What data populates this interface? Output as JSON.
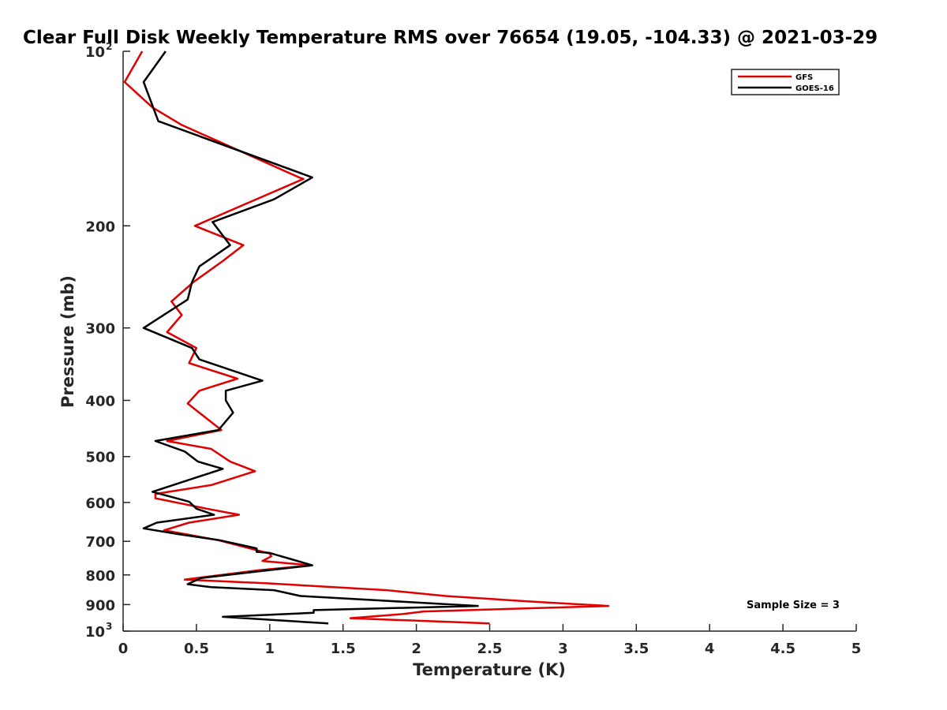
{
  "chart_data": {
    "type": "line",
    "title": "Clear Full Disk Weekly Temperature RMS over 76654 (19.05, -104.33) @ 2021-03-29",
    "xlabel": "Temperature (K)",
    "ylabel": "Pressure (mb)",
    "xlim": [
      0,
      5
    ],
    "ylim": [
      100,
      1000
    ],
    "y_scale": "log",
    "y_reversed": true,
    "grid": false,
    "legend_position": "top-right",
    "x_ticks": [
      "0",
      "0.5",
      "1",
      "1.5",
      "2",
      "2.5",
      "3",
      "3.5",
      "4",
      "4.5",
      "5"
    ],
    "x_tick_values": [
      0,
      0.5,
      1,
      1.5,
      2,
      2.5,
      3,
      3.5,
      4,
      4.5,
      5
    ],
    "y_ticks": [
      {
        "value": 100,
        "base": "10",
        "exp": "2"
      },
      {
        "value": 200,
        "label": "200"
      },
      {
        "value": 300,
        "label": "300"
      },
      {
        "value": 400,
        "label": "400"
      },
      {
        "value": 500,
        "label": "500"
      },
      {
        "value": 600,
        "label": "600"
      },
      {
        "value": 700,
        "label": "700"
      },
      {
        "value": 800,
        "label": "800"
      },
      {
        "value": 900,
        "label": "900"
      },
      {
        "value": 1000,
        "base": "10",
        "exp": "3"
      }
    ],
    "annotation": "Sample Size = 3",
    "series": [
      {
        "name": "GFS",
        "color": "#e00000",
        "points": [
          [
            0.13,
            100
          ],
          [
            0.01,
            113
          ],
          [
            0.2,
            125
          ],
          [
            0.4,
            134
          ],
          [
            1.2,
            165
          ],
          [
            1.23,
            166
          ],
          [
            0.49,
            200
          ],
          [
            0.82,
            216
          ],
          [
            0.68,
            230
          ],
          [
            0.48,
            250
          ],
          [
            0.33,
            270
          ],
          [
            0.4,
            285
          ],
          [
            0.3,
            305
          ],
          [
            0.5,
            325
          ],
          [
            0.45,
            345
          ],
          [
            0.78,
            367
          ],
          [
            0.52,
            385
          ],
          [
            0.44,
            405
          ],
          [
            0.67,
            450
          ],
          [
            0.3,
            470
          ],
          [
            0.6,
            485
          ],
          [
            0.73,
            510
          ],
          [
            0.9,
            530
          ],
          [
            0.6,
            560
          ],
          [
            0.22,
            580
          ],
          [
            0.22,
            590
          ],
          [
            0.57,
            615
          ],
          [
            0.79,
            630
          ],
          [
            0.45,
            650
          ],
          [
            0.28,
            670
          ],
          [
            0.65,
            697
          ],
          [
            1.0,
            735
          ],
          [
            1.01,
            743
          ],
          [
            0.95,
            757
          ],
          [
            1.28,
            770
          ],
          [
            0.93,
            785
          ],
          [
            0.42,
            815
          ],
          [
            0.98,
            827
          ],
          [
            1.8,
            850
          ],
          [
            2.2,
            870
          ],
          [
            2.8,
            890
          ],
          [
            3.31,
            905
          ],
          [
            2.05,
            925
          ],
          [
            1.9,
            935
          ],
          [
            1.55,
            950
          ],
          [
            2.5,
            970
          ]
        ]
      },
      {
        "name": "GOES-16",
        "color": "#000000",
        "points": [
          [
            0.29,
            100
          ],
          [
            0.14,
            113
          ],
          [
            0.24,
            132
          ],
          [
            1.29,
            165
          ],
          [
            1.03,
            180
          ],
          [
            0.61,
            197
          ],
          [
            0.73,
            216
          ],
          [
            0.52,
            235
          ],
          [
            0.47,
            250
          ],
          [
            0.44,
            268
          ],
          [
            0.14,
            300
          ],
          [
            0.47,
            325
          ],
          [
            0.52,
            340
          ],
          [
            0.95,
            370
          ],
          [
            0.7,
            385
          ],
          [
            0.7,
            400
          ],
          [
            0.75,
            420
          ],
          [
            0.65,
            450
          ],
          [
            0.22,
            470
          ],
          [
            0.42,
            490
          ],
          [
            0.51,
            510
          ],
          [
            0.68,
            525
          ],
          [
            0.2,
            575
          ],
          [
            0.45,
            598
          ],
          [
            0.5,
            615
          ],
          [
            0.62,
            630
          ],
          [
            0.23,
            650
          ],
          [
            0.14,
            665
          ],
          [
            0.37,
            680
          ],
          [
            0.66,
            697
          ],
          [
            0.91,
            720
          ],
          [
            0.91,
            730
          ],
          [
            1.0,
            733
          ],
          [
            1.29,
            770
          ],
          [
            0.9,
            790
          ],
          [
            0.53,
            810
          ],
          [
            0.44,
            830
          ],
          [
            0.6,
            840
          ],
          [
            1.03,
            850
          ],
          [
            1.21,
            870
          ],
          [
            2.42,
            905
          ],
          [
            1.3,
            920
          ],
          [
            1.3,
            930
          ],
          [
            0.68,
            945
          ],
          [
            1.4,
            970
          ]
        ]
      }
    ]
  }
}
